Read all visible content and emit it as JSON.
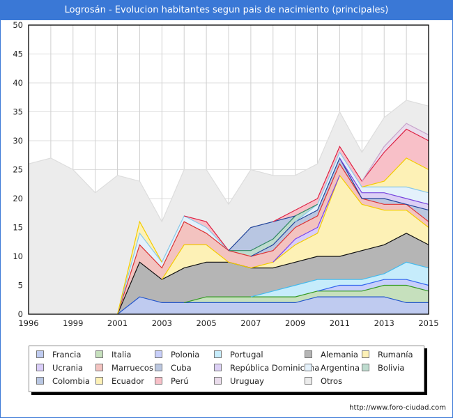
{
  "title": "Logrosán - Evolucion habitantes segun pais de nacimiento (principales)",
  "footer_url": "http://www.foro-ciudad.com",
  "chart_data": {
    "type": "area",
    "stacked": true,
    "title": "Logrosán - Evolucion habitantes segun pais de nacimiento (principales)",
    "xlabel": "",
    "ylabel": "",
    "ylim": [
      0,
      50
    ],
    "yticks": [
      0,
      5,
      10,
      15,
      20,
      25,
      30,
      35,
      40,
      45,
      50
    ],
    "grid": true,
    "legend_position": "bottom",
    "x": [
      "1996",
      "1998",
      "1999",
      "2000",
      "2001",
      "2002",
      "2003",
      "2004",
      "2005",
      "2006",
      "2007",
      "2008",
      "2009",
      "2010",
      "2011",
      "2012",
      "2013",
      "2014",
      "2015"
    ],
    "xtick_labels": [
      "1996",
      "1999",
      "2001",
      "2003",
      "2005",
      "2007",
      "2009",
      "2011",
      "2013",
      "2015"
    ],
    "series": [
      {
        "name": "Francia",
        "fill": "#bfcbf0",
        "line": "#2255cc",
        "values": [
          0,
          0,
          0,
          0,
          0,
          3,
          2,
          2,
          2,
          2,
          2,
          2,
          2,
          3,
          3,
          3,
          3,
          2,
          2
        ]
      },
      {
        "name": "Italia",
        "fill": "#c6e0bd",
        "line": "#339922",
        "values": [
          0,
          0,
          0,
          0,
          0,
          0,
          0,
          0,
          1,
          1,
          1,
          1,
          1,
          1,
          1,
          1,
          2,
          3,
          2
        ]
      },
      {
        "name": "Polonia",
        "fill": "#c8cffa",
        "line": "#3366ee",
        "values": [
          0,
          0,
          0,
          0,
          0,
          0,
          0,
          0,
          0,
          0,
          0,
          0,
          0,
          0,
          1,
          1,
          1,
          1,
          1
        ]
      },
      {
        "name": "Portugal",
        "fill": "#c6ecfb",
        "line": "#44bbee",
        "values": [
          0,
          0,
          0,
          0,
          0,
          0,
          0,
          0,
          0,
          0,
          0,
          1,
          2,
          2,
          1,
          1,
          1,
          3,
          3
        ]
      },
      {
        "name": "Alemania",
        "fill": "#b5b5b5",
        "line": "#111111",
        "values": [
          0,
          0,
          0,
          0,
          0,
          6,
          4,
          6,
          6,
          6,
          5,
          4,
          4,
          4,
          4,
          5,
          5,
          5,
          4
        ]
      },
      {
        "name": "Rumanía",
        "fill": "#fdf1b6",
        "line": "#f4cc00",
        "values": [
          0,
          0,
          0,
          0,
          0,
          0,
          0,
          4,
          3,
          0,
          0,
          1,
          3,
          4,
          14,
          8,
          6,
          4,
          3
        ]
      },
      {
        "name": "Ucrania",
        "fill": "#d9cdf9",
        "line": "#7744ee",
        "values": [
          0,
          0,
          0,
          0,
          0,
          0,
          0,
          0,
          0,
          0,
          0,
          0,
          1,
          1,
          0,
          0,
          0,
          0,
          0
        ]
      },
      {
        "name": "Marruecos",
        "fill": "#f3c3c0",
        "line": "#dd3333",
        "values": [
          0,
          0,
          0,
          0,
          0,
          3,
          2,
          4,
          2,
          2,
          2,
          2,
          2,
          2,
          2,
          1,
          1,
          1,
          1
        ]
      },
      {
        "name": "Cuba",
        "fill": "#bbc7e0",
        "line": "#224499",
        "values": [
          0,
          0,
          0,
          0,
          0,
          0,
          0,
          0,
          0,
          0,
          0,
          1,
          1,
          1,
          1,
          0,
          1,
          0,
          2
        ]
      },
      {
        "name": "República Dominicana",
        "fill": "#dcd0f5",
        "line": "#7744dd",
        "values": [
          0,
          0,
          0,
          0,
          0,
          0,
          0,
          0,
          0,
          0,
          0,
          0,
          0,
          0,
          0,
          1,
          1,
          1,
          1
        ]
      },
      {
        "name": "Argentina",
        "fill": "#e4f1fb",
        "line": "#88c8e8",
        "values": [
          0,
          0,
          0,
          0,
          0,
          2,
          1,
          1,
          1,
          0,
          0,
          0,
          0,
          1,
          1,
          1,
          1,
          2,
          2
        ]
      },
      {
        "name": "Bolivia",
        "fill": "#bedccf",
        "line": "#338866",
        "values": [
          0,
          0,
          0,
          0,
          0,
          0,
          0,
          0,
          0,
          0,
          1,
          1,
          1,
          0,
          0,
          0,
          0,
          0,
          0
        ]
      },
      {
        "name": "Colombia",
        "fill": "#b8c6e2",
        "line": "#224499",
        "values": [
          0,
          0,
          0,
          0,
          0,
          0,
          0,
          0,
          0,
          0,
          4,
          3,
          0,
          0,
          0,
          0,
          0,
          0,
          0
        ]
      },
      {
        "name": "Ecuador",
        "fill": "#fdf1b6",
        "line": "#f4cc00",
        "values": [
          0,
          0,
          0,
          0,
          0,
          2,
          0,
          0,
          0,
          0,
          0,
          0,
          0,
          0,
          0,
          0,
          1,
          5,
          4
        ]
      },
      {
        "name": "Perú",
        "fill": "#f8c0c8",
        "line": "#dd2244",
        "values": [
          0,
          0,
          0,
          0,
          0,
          0,
          0,
          0,
          1,
          0,
          0,
          0,
          1,
          1,
          1,
          1,
          5,
          5,
          5
        ]
      },
      {
        "name": "Uruguay",
        "fill": "#eadcec",
        "line": "#c8a4cc",
        "values": [
          0,
          0,
          0,
          0,
          0,
          0,
          0,
          0,
          0,
          0,
          0,
          0,
          0,
          0,
          0,
          0,
          1,
          1,
          1
        ]
      },
      {
        "name": "Otros",
        "fill": "#ececec",
        "line": "#dddddd",
        "values": [
          26,
          27,
          25,
          21,
          24,
          7,
          7,
          8,
          9,
          8,
          10,
          8,
          6,
          6,
          6,
          5,
          5,
          4,
          5
        ]
      }
    ]
  }
}
